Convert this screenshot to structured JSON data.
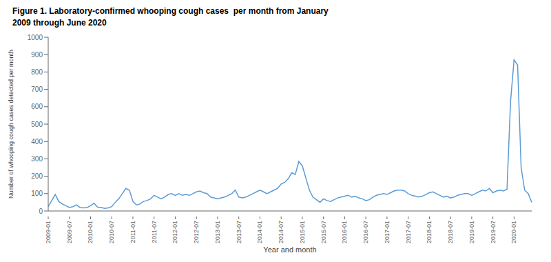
{
  "chart_data": {
    "type": "line",
    "title": "Figure 1. Laboratory-confirmed whooping cough cases  per month from January\n2009 through June 2020",
    "xlabel": "Year and month",
    "ylabel": "Number of whooping cough cases detected per month",
    "color": "#5B9BD5",
    "ylim": [
      0,
      1000
    ],
    "yticks": [
      0,
      100,
      200,
      300,
      400,
      500,
      600,
      700,
      800,
      900,
      1000
    ],
    "grid": false,
    "categories": [
      "2009-01",
      null,
      null,
      null,
      null,
      null,
      "2009-07",
      null,
      null,
      null,
      null,
      null,
      "2010-01",
      null,
      null,
      null,
      null,
      null,
      "2010-07",
      null,
      null,
      null,
      null,
      null,
      "2011-01",
      null,
      null,
      null,
      null,
      null,
      "2011-07",
      null,
      null,
      null,
      null,
      null,
      "2012-01",
      null,
      null,
      null,
      null,
      null,
      "2012-07",
      null,
      null,
      null,
      null,
      null,
      "2013-01",
      null,
      null,
      null,
      null,
      null,
      "2013-07",
      null,
      null,
      null,
      null,
      null,
      "2014-01",
      null,
      null,
      null,
      null,
      null,
      "2014-07",
      null,
      null,
      null,
      null,
      null,
      "2015-01",
      null,
      null,
      null,
      null,
      null,
      "2015-07",
      null,
      null,
      null,
      null,
      null,
      "2016-01",
      null,
      null,
      null,
      null,
      null,
      "2016-07",
      null,
      null,
      null,
      null,
      null,
      "2017-01",
      null,
      null,
      null,
      null,
      null,
      "2017-07",
      null,
      null,
      null,
      null,
      null,
      "2018-01",
      null,
      null,
      null,
      null,
      null,
      "2018-07",
      null,
      null,
      null,
      null,
      null,
      "2019-01",
      null,
      null,
      null,
      null,
      null,
      "2019-07",
      null,
      null,
      null,
      null,
      null,
      "2020-01",
      null,
      null,
      null,
      null,
      null
    ],
    "values": [
      25,
      60,
      95,
      55,
      40,
      30,
      20,
      25,
      35,
      20,
      18,
      20,
      30,
      45,
      22,
      20,
      15,
      18,
      25,
      50,
      70,
      100,
      130,
      120,
      55,
      35,
      40,
      55,
      60,
      70,
      90,
      80,
      70,
      80,
      95,
      100,
      90,
      100,
      90,
      95,
      90,
      100,
      110,
      115,
      105,
      100,
      80,
      75,
      70,
      75,
      80,
      90,
      100,
      120,
      80,
      75,
      80,
      90,
      100,
      110,
      120,
      110,
      100,
      110,
      120,
      130,
      155,
      165,
      185,
      220,
      210,
      285,
      260,
      190,
      120,
      80,
      65,
      50,
      70,
      60,
      55,
      65,
      75,
      80,
      85,
      90,
      80,
      85,
      75,
      70,
      60,
      65,
      80,
      90,
      95,
      100,
      95,
      105,
      115,
      120,
      120,
      115,
      100,
      90,
      85,
      80,
      85,
      95,
      105,
      110,
      100,
      90,
      80,
      85,
      75,
      80,
      90,
      95,
      100,
      100,
      90,
      100,
      110,
      120,
      115,
      130,
      105,
      115,
      120,
      115,
      125,
      630,
      870,
      840,
      250,
      120,
      100,
      50
    ]
  }
}
